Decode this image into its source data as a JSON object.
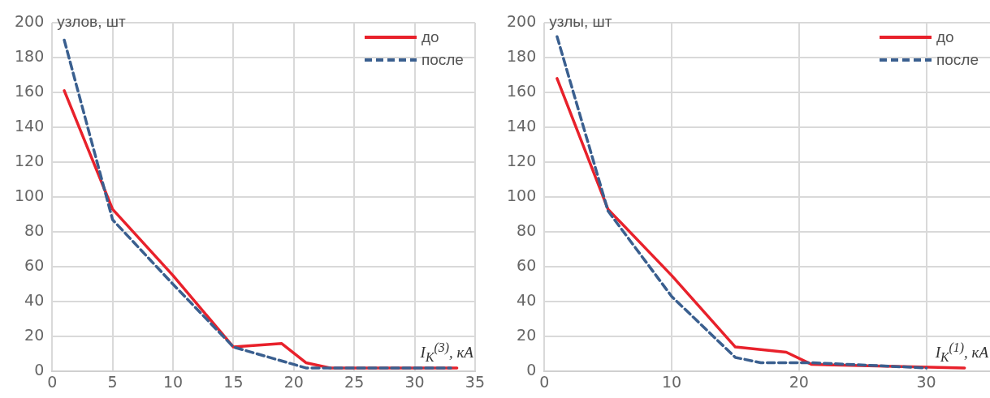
{
  "chart_data": [
    {
      "type": "line",
      "xlabel": "I$_{K}$$^{(3)}$, кА",
      "ylabel": "узлов, шт",
      "xlim": [
        0,
        35
      ],
      "xticks": [
        0,
        5,
        10,
        15,
        20,
        25,
        30,
        35
      ],
      "ylim": [
        0,
        200
      ],
      "yticks": [
        0,
        20,
        40,
        60,
        80,
        100,
        120,
        140,
        160,
        180,
        200
      ],
      "grid": true,
      "legend": "top right",
      "marker": "none",
      "series": [
        {
          "name": "до",
          "color": "#e8212b",
          "line_style": "solid",
          "x": [
            1,
            5,
            10,
            15,
            19,
            21,
            23,
            33.5
          ],
          "values": [
            161,
            93,
            55,
            14,
            16,
            5,
            2,
            2
          ]
        },
        {
          "name": "после",
          "color": "#3a5f8f",
          "line_style": "dashed",
          "x": [
            1,
            5,
            10,
            15,
            21,
            23,
            33
          ],
          "values": [
            190,
            87,
            50,
            14,
            2,
            2,
            2
          ]
        }
      ]
    },
    {
      "type": "line",
      "xlabel": "I$_{K}$$^{(1)}$, кА",
      "ylabel": "узлы, шт",
      "xlim": [
        0,
        35
      ],
      "xticks": [
        0,
        10,
        20,
        30
      ],
      "ylim": [
        0,
        200
      ],
      "yticks": [
        0,
        20,
        40,
        60,
        80,
        100,
        120,
        140,
        160,
        180,
        200
      ],
      "grid": true,
      "legend": "top right",
      "marker": "none",
      "series": [
        {
          "name": "до",
          "color": "#e8212b",
          "line_style": "solid",
          "x": [
            1,
            5,
            10,
            15,
            19,
            21,
            33
          ],
          "values": [
            168,
            93,
            55,
            14,
            11,
            4,
            2
          ]
        },
        {
          "name": "после",
          "color": "#3a5f8f",
          "line_style": "dashed",
          "x": [
            1,
            5,
            10,
            15,
            17,
            19,
            21,
            30
          ],
          "values": [
            192,
            92,
            43,
            8,
            5,
            5,
            5,
            2
          ]
        }
      ]
    }
  ]
}
